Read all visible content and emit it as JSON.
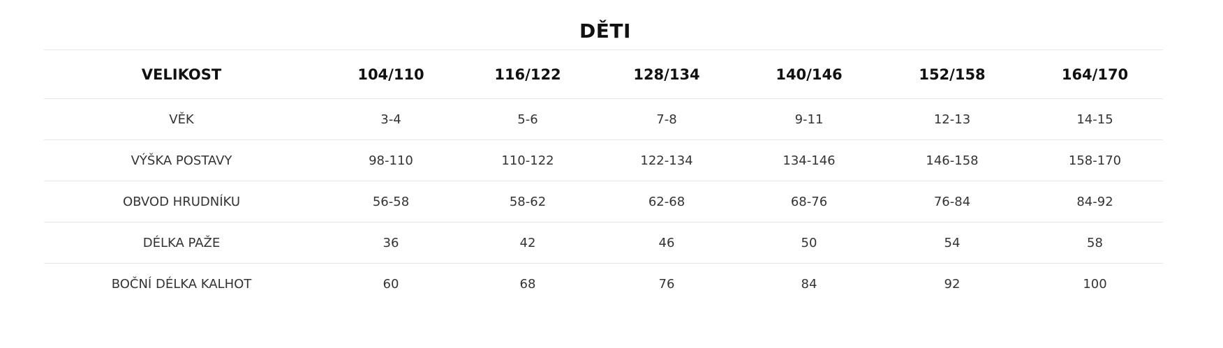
{
  "title": "DĚTI",
  "table": {
    "header": [
      "VELIKOST",
      "104/110",
      "116/122",
      "128/134",
      "140/146",
      "152/158",
      "164/170"
    ],
    "rows": [
      [
        "VĚK",
        "3-4",
        "5-6",
        "7-8",
        "9-11",
        "12-13",
        "14-15"
      ],
      [
        "VÝŠKA POSTAVY",
        "98-110",
        "110-122",
        "122-134",
        "134-146",
        "146-158",
        "158-170"
      ],
      [
        "OBVOD HRUDNÍKU",
        "56-58",
        "58-62",
        "62-68",
        "68-76",
        "76-84",
        "84-92"
      ],
      [
        "DÉLKA PAŽE",
        "36",
        "42",
        "46",
        "50",
        "54",
        "58"
      ],
      [
        "BOČNÍ DÉLKA KALHOT",
        "60",
        "68",
        "76",
        "84",
        "92",
        "100"
      ]
    ]
  }
}
